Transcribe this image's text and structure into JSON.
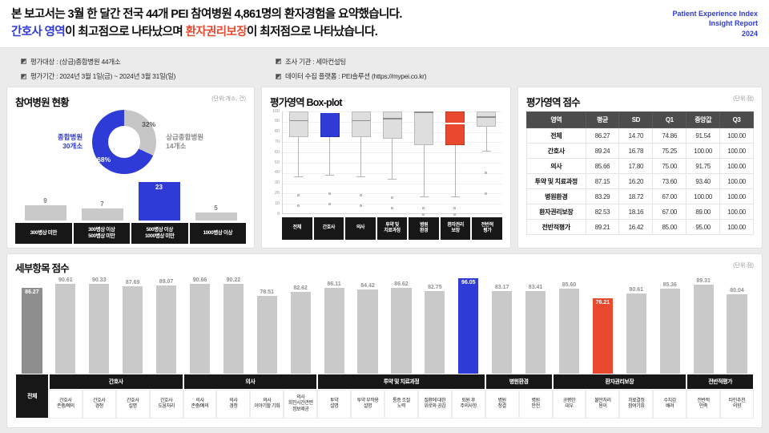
{
  "colors": {
    "blue": "#2e3bd7",
    "red": "#e8492f",
    "bar_gray": "#c9c9c9",
    "bar_dark": "#8e8e8e",
    "donut_gray": "#c6c6c6",
    "label_bg": "#171717",
    "table_header_bg": "#4c4c4c"
  },
  "header": {
    "line1": "본 보고서는 3월 한 달간 전국 44개 PEI 참여병원 4,861명의 환자경험을 요약했습니다.",
    "line2": {
      "hl1": "간호사 영역",
      "mid": "이 최고점으로 나타났으며 ",
      "hl2": "환자권리보장",
      "end": "이 최저점으로 나타났습니다."
    },
    "brand": [
      "Patient Experience Index",
      "Insight Report",
      "2024"
    ]
  },
  "meta": {
    "items": [
      "평가대상 : (상급)종합병원 44개소",
      "조사 기관 : 세마컨설팅",
      "평가기간 : 2024년 3월 1일(금) ~ 2024년 3월 31일(일)",
      "데이터 수집 플랫폼 : PEI솔루션 (https://mypei.co.kr)"
    ]
  },
  "panels": {
    "hospital": {
      "title": "참여병원 현황",
      "unit": "(단위:개소, 건)"
    },
    "boxplot": {
      "title": "평가영역 Box-plot"
    },
    "scores": {
      "title": "평가영역 점수",
      "unit": "(단위:점)"
    },
    "detail": {
      "title": "세부항목 점수",
      "unit": "(단위:점)"
    }
  },
  "chart_data": [
    {
      "id": "hospital_donut",
      "type": "pie",
      "title": "참여병원 현황",
      "slices": [
        {
          "label": "상급종합병원 14개소",
          "pct": 32,
          "color": "gray"
        },
        {
          "label": "종합병원 30개소",
          "pct": 68,
          "color": "blue"
        }
      ],
      "left_label": "종합병원\n30개소",
      "right_label": "상급종합병원\n14개소"
    },
    {
      "id": "hospital_beds",
      "type": "bar",
      "categories": [
        "300병상 미만",
        "300병상 이상\n500병상 미만",
        "500병상 이상\n1000병상 미만",
        "1000병상 이상"
      ],
      "values": [
        9,
        7,
        23,
        5
      ],
      "highlight_index": 2,
      "ymax": 25
    },
    {
      "id": "domain_boxplot",
      "type": "boxplot",
      "title": "평가영역 Box-plot",
      "ylim": [
        0,
        100
      ],
      "yticks": [
        0,
        10,
        20,
        30,
        40,
        50,
        60,
        70,
        80,
        90,
        100
      ],
      "categories": [
        {
          "label": "전체",
          "q1": 74.86,
          "median": 91.54,
          "q3": 100,
          "lo": 37,
          "hi": 100,
          "outliers": [
            18,
            8
          ],
          "color": "gray"
        },
        {
          "label": "간호사",
          "q1": 75.25,
          "median": 100,
          "q3": 100,
          "lo": 38,
          "hi": 100,
          "outliers": [
            20,
            10
          ],
          "color": "blue"
        },
        {
          "label": "의사",
          "q1": 75.0,
          "median": 91.75,
          "q3": 100,
          "lo": 37,
          "hi": 100,
          "outliers": [
            18,
            8
          ],
          "color": "gray"
        },
        {
          "label": "투약 및\n치료과정",
          "q1": 73.6,
          "median": 93.4,
          "q3": 100,
          "lo": 34,
          "hi": 100,
          "outliers": [
            16,
            6
          ],
          "color": "gray"
        },
        {
          "label": "병원\n환경",
          "q1": 67.0,
          "median": 100,
          "q3": 100,
          "lo": 17,
          "hi": 100,
          "outliers": [
            6,
            0
          ],
          "color": "gray"
        },
        {
          "label": "환자권리\n보장",
          "q1": 67.0,
          "median": 89.0,
          "q3": 100,
          "lo": 17,
          "hi": 100,
          "outliers": [
            6,
            0
          ],
          "color": "red"
        },
        {
          "label": "전반적\n평가",
          "q1": 85.0,
          "median": 95.0,
          "q3": 100,
          "lo": 62,
          "hi": 100,
          "outliers": [
            40,
            20
          ],
          "color": "gray"
        }
      ]
    },
    {
      "id": "domain_scores",
      "type": "table",
      "title": "평가영역 점수",
      "headers": [
        "영역",
        "평균",
        "SD",
        "Q1",
        "중앙값",
        "Q3"
      ],
      "rows": [
        [
          "전체",
          "86.27",
          "14.70",
          "74.86",
          "91.54",
          "100.00"
        ],
        [
          "간호사",
          "89.24",
          "16.78",
          "75.25",
          "100.00",
          "100.00"
        ],
        [
          "의사",
          "85.66",
          "17.80",
          "75.00",
          "91.75",
          "100.00"
        ],
        [
          "투약 및 치료과정",
          "87.15",
          "16.20",
          "73.60",
          "93.40",
          "100.00"
        ],
        [
          "병원환경",
          "83.29",
          "18.72",
          "67.00",
          "100.00",
          "100.00"
        ],
        [
          "환자권리보장",
          "82.53",
          "18.16",
          "67.00",
          "89.00",
          "100.00"
        ],
        [
          "전반적평가",
          "89.21",
          "16.42",
          "85.00",
          "95.00",
          "100.00"
        ]
      ]
    },
    {
      "id": "detail_scores",
      "type": "bar",
      "title": "세부항목 점수",
      "ymax": 100,
      "groups": [
        {
          "label": "전체",
          "span_rows": true,
          "items": [
            {
              "label": "전체",
              "value": "86.27",
              "color": "dark"
            }
          ]
        },
        {
          "label": "간호사",
          "items": [
            {
              "label": "간호사\n존중/예의",
              "value": "90.61"
            },
            {
              "label": "간호사\n경청",
              "value": "90.33"
            },
            {
              "label": "간호사\n설명",
              "value": "87.69"
            },
            {
              "label": "간호사\n도움처리",
              "value": "89.07"
            }
          ]
        },
        {
          "label": "의사",
          "items": [
            {
              "label": "의사\n존중/예의",
              "value": "90.66"
            },
            {
              "label": "의사\n경청",
              "value": "90.22"
            },
            {
              "label": "의사\n이야기할 기회",
              "value": "78.51"
            },
            {
              "label": "의사\n회진시간관련\n정보제공",
              "value": "82.62"
            }
          ]
        },
        {
          "label": "투약 및 치료과정",
          "items": [
            {
              "label": "투약\n설명",
              "value": "86.11"
            },
            {
              "label": "투약 부작용\n설명",
              "value": "84.42"
            },
            {
              "label": "통증 조절\n노력",
              "value": "86.62"
            },
            {
              "label": "질환에 대한\n위로와 공감",
              "value": "82.75"
            },
            {
              "label": "퇴원 후\n주의사항",
              "value": "96.05",
              "color": "blue"
            }
          ]
        },
        {
          "label": "병원환경",
          "items": [
            {
              "label": "병원\n청결",
              "value": "83.17"
            },
            {
              "label": "병원\n안전",
              "value": "83.41"
            }
          ]
        },
        {
          "label": "환자권리보장",
          "items": [
            {
              "label": "공평한\n대우",
              "value": "85.60"
            },
            {
              "label": "불만처리\n용이",
              "value": "76.21",
              "color": "red"
            },
            {
              "label": "치료결정\n참여기회",
              "value": "80.61"
            },
            {
              "label": "수치감\n배려",
              "value": "85.36"
            }
          ]
        },
        {
          "label": "전반적평가",
          "items": [
            {
              "label": "전반적\n만족",
              "value": "89.31"
            },
            {
              "label": "타인추천\n의향",
              "value": "80.04"
            }
          ]
        }
      ]
    }
  ]
}
